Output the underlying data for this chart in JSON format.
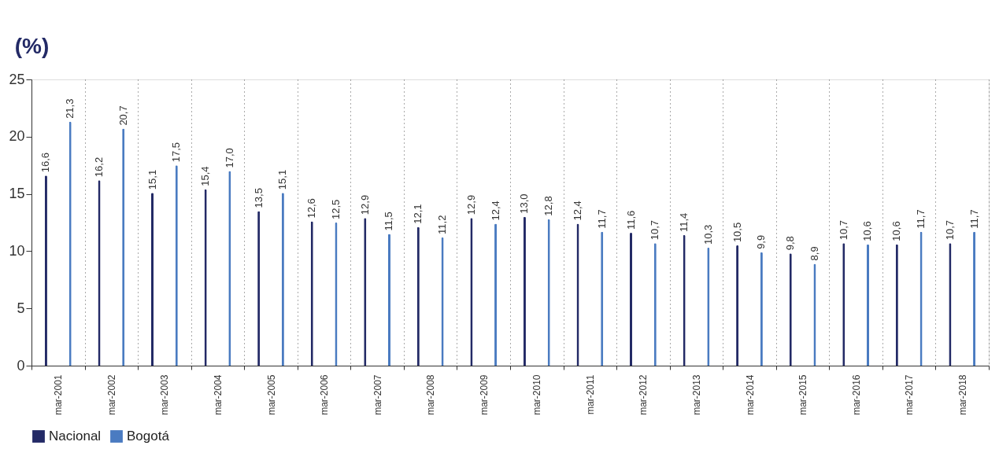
{
  "chart_data": {
    "type": "bar",
    "ylabel": "(%)",
    "categories": [
      "mar-2001",
      "mar-2002",
      "mar-2003",
      "mar-2004",
      "mar-2005",
      "mar-2006",
      "mar-2007",
      "mar-2008",
      "mar-2009",
      "mar-2010",
      "mar-2011",
      "mar-2012",
      "mar-2013",
      "mar-2014",
      "mar-2015",
      "mar-2016",
      "mar-2017",
      "mar-2018"
    ],
    "series": [
      {
        "name": "Nacional",
        "color": "#232a66",
        "values": [
          16.6,
          16.2,
          15.1,
          15.4,
          13.5,
          12.6,
          12.9,
          12.1,
          12.9,
          13.0,
          12.4,
          11.6,
          11.4,
          10.5,
          9.8,
          10.7,
          10.6,
          10.7
        ],
        "value_labels": [
          "16,6",
          "16,2",
          "15,1",
          "15,4",
          "13,5",
          "12,6",
          "12,9",
          "12,1",
          "12,9",
          "13,0",
          "12,4",
          "11,6",
          "11,4",
          "10,5",
          "9,8",
          "10,7",
          "10,6",
          "10,7"
        ]
      },
      {
        "name": "Bogotá",
        "color": "#4a7bc1",
        "values": [
          21.3,
          20.7,
          17.5,
          17.0,
          15.1,
          12.5,
          11.5,
          11.2,
          12.4,
          12.8,
          11.7,
          10.7,
          10.3,
          9.9,
          8.9,
          10.6,
          11.7,
          11.7
        ],
        "value_labels": [
          "21,3",
          "20,7",
          "17,5",
          "17,0",
          "15,1",
          "12,5",
          "11,5",
          "11,2",
          "12,4",
          "12,8",
          "11,7",
          "10,7",
          "10,3",
          "9,9",
          "8,9",
          "10,6",
          "11,7",
          "11,7"
        ]
      }
    ],
    "ylim": [
      0,
      25
    ],
    "yticks": [
      0,
      5,
      10,
      15,
      20,
      25
    ],
    "grid": "x",
    "legend": "bottom"
  }
}
